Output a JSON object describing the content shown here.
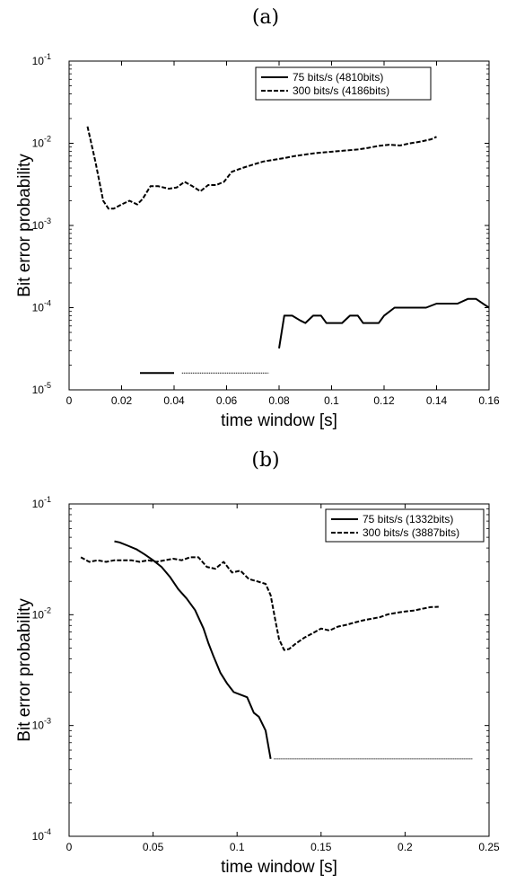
{
  "chart_data": [
    {
      "panel_label": "(a)",
      "type": "line",
      "xlabel": "time window [s]",
      "ylabel": "Bit error probability",
      "xlim": [
        0,
        0.16
      ],
      "ylim": [
        1e-05,
        0.1
      ],
      "y_scale": "log",
      "grid": false,
      "legend_position": "top-right",
      "x_ticks": [
        "0",
        "0.02",
        "0.04",
        "0.06",
        "0.08",
        "0.1",
        "0.12",
        "0.14",
        "0.16"
      ],
      "y_ticks": [
        {
          "base": "10",
          "exp": "-5"
        },
        {
          "base": "10",
          "exp": "-4"
        },
        {
          "base": "10",
          "exp": "-3"
        },
        {
          "base": "10",
          "exp": "-2"
        },
        {
          "base": "10",
          "exp": "-1"
        }
      ],
      "series": [
        {
          "name": "75 bits/s (4810bits)",
          "style": "solid",
          "segments": [
            {
              "style": "solid",
              "x": [
                0.027,
                0.04
              ],
              "y": [
                1.6e-05,
                1.6e-05
              ]
            },
            {
              "style": "dotted",
              "x": [
                0.043,
                0.076
              ],
              "y": [
                1.6e-05,
                1.6e-05
              ]
            },
            {
              "style": "solid",
              "x": [
                0.08,
                0.082,
                0.085,
                0.088,
                0.09,
                0.093,
                0.096,
                0.098,
                0.101,
                0.104,
                0.107,
                0.11,
                0.112,
                0.115,
                0.118,
                0.12,
                0.124,
                0.128,
                0.132,
                0.136,
                0.14,
                0.144,
                0.148,
                0.152,
                0.155,
                0.158,
                0.16
              ],
              "y": [
                3.2e-05,
                8e-05,
                8e-05,
                7e-05,
                6.5e-05,
                8e-05,
                8e-05,
                6.5e-05,
                6.5e-05,
                6.5e-05,
                8e-05,
                8e-05,
                6.5e-05,
                6.5e-05,
                6.5e-05,
                8e-05,
                0.0001,
                0.0001,
                0.0001,
                0.0001,
                0.000112,
                0.000112,
                0.000112,
                0.000128,
                0.000128,
                0.00011,
                0.0001
              ]
            }
          ]
        },
        {
          "name": "300 bits/s (4186bits)",
          "style": "dashed",
          "segments": [
            {
              "style": "dashed",
              "x": [
                0.007,
                0.01,
                0.013,
                0.015,
                0.017,
                0.02,
                0.023,
                0.026,
                0.028,
                0.031,
                0.034,
                0.038,
                0.041,
                0.044,
                0.047,
                0.05,
                0.053,
                0.056,
                0.059,
                0.062,
                0.066,
                0.07,
                0.074,
                0.078,
                0.082,
                0.086,
                0.09,
                0.094,
                0.098,
                0.102,
                0.106,
                0.11,
                0.114,
                0.118,
                0.122,
                0.126,
                0.13,
                0.134,
                0.138,
                0.14
              ],
              "y": [
                0.016,
                0.006,
                0.002,
                0.0016,
                0.0016,
                0.0018,
                0.002,
                0.0018,
                0.0021,
                0.003,
                0.003,
                0.0028,
                0.0029,
                0.0034,
                0.003,
                0.0026,
                0.0031,
                0.0031,
                0.0034,
                0.0045,
                0.005,
                0.0055,
                0.006,
                0.0063,
                0.0066,
                0.007,
                0.0073,
                0.0076,
                0.0078,
                0.008,
                0.0082,
                0.0084,
                0.0088,
                0.0093,
                0.0096,
                0.0094,
                0.01,
                0.0105,
                0.0112,
                0.012
              ]
            }
          ]
        }
      ]
    },
    {
      "panel_label": "(b)",
      "type": "line",
      "xlabel": "time window [s]",
      "ylabel": "Bit error probability",
      "xlim": [
        0,
        0.25
      ],
      "ylim": [
        0.0001,
        0.1
      ],
      "y_scale": "log",
      "grid": false,
      "legend_position": "top-right",
      "x_ticks": [
        "0",
        "0.05",
        "0.1",
        "0.15",
        "0.2",
        "0.25"
      ],
      "y_ticks": [
        {
          "base": "10",
          "exp": "-4"
        },
        {
          "base": "10",
          "exp": "-3"
        },
        {
          "base": "10",
          "exp": "-2"
        },
        {
          "base": "10",
          "exp": "-1"
        }
      ],
      "series": [
        {
          "name": "75 bits/s (1332bits)",
          "style": "solid",
          "segments": [
            {
              "style": "solid",
              "x": [
                0.027,
                0.03,
                0.035,
                0.04,
                0.045,
                0.05,
                0.055,
                0.06,
                0.065,
                0.07,
                0.075,
                0.08,
                0.083,
                0.086,
                0.09,
                0.094,
                0.098,
                0.102,
                0.106,
                0.11,
                0.113,
                0.117,
                0.12
              ],
              "y": [
                0.046,
                0.045,
                0.042,
                0.039,
                0.035,
                0.031,
                0.027,
                0.022,
                0.017,
                0.014,
                0.011,
                0.0075,
                0.0055,
                0.0042,
                0.003,
                0.0024,
                0.002,
                0.0019,
                0.0018,
                0.0013,
                0.0012,
                0.0009,
                0.0005
              ]
            },
            {
              "style": "dotted",
              "x": [
                0.122,
                0.24
              ],
              "y": [
                0.0005,
                0.0005
              ]
            }
          ]
        },
        {
          "name": "300 bits/s (3887bits)",
          "style": "dashed",
          "segments": [
            {
              "style": "dashed",
              "x": [
                0.007,
                0.012,
                0.017,
                0.022,
                0.027,
                0.032,
                0.037,
                0.042,
                0.047,
                0.052,
                0.057,
                0.062,
                0.067,
                0.072,
                0.077,
                0.082,
                0.087,
                0.092,
                0.097,
                0.102,
                0.107,
                0.112,
                0.117,
                0.12,
                0.123,
                0.125,
                0.128,
                0.131,
                0.135,
                0.14,
                0.145,
                0.15,
                0.155,
                0.16,
                0.165,
                0.17,
                0.175,
                0.18,
                0.185,
                0.19,
                0.195,
                0.2,
                0.205,
                0.21,
                0.215,
                0.22
              ],
              "y": [
                0.033,
                0.03,
                0.031,
                0.03,
                0.031,
                0.031,
                0.031,
                0.03,
                0.031,
                0.03,
                0.031,
                0.032,
                0.031,
                0.033,
                0.033,
                0.027,
                0.026,
                0.03,
                0.024,
                0.025,
                0.021,
                0.02,
                0.019,
                0.015,
                0.0085,
                0.006,
                0.0048,
                0.0049,
                0.0055,
                0.0062,
                0.0068,
                0.0075,
                0.0072,
                0.0078,
                0.0081,
                0.0085,
                0.0089,
                0.0092,
                0.0095,
                0.0101,
                0.0104,
                0.0107,
                0.0109,
                0.0113,
                0.0117,
                0.0118
              ]
            }
          ]
        }
      ]
    }
  ]
}
